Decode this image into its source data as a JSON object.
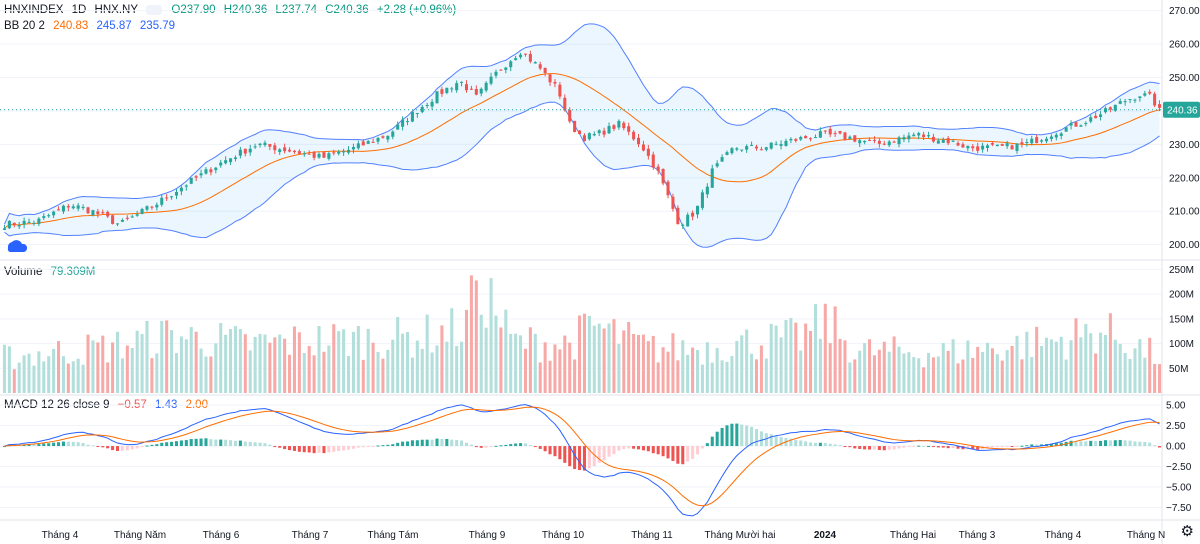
{
  "header": {
    "symbol": "HNXINDEX",
    "interval": "1D",
    "exchange": "HNX.NY",
    "open": "O237.90",
    "high": "H240.36",
    "low": "L237.74",
    "close": "C240.36",
    "change": "+2.28 (+0.96%)"
  },
  "bb": {
    "label": "BB 20 2",
    "basis": "240.83",
    "upper": "245.87",
    "lower": "235.79"
  },
  "volume": {
    "label": "Volume",
    "value": "79.309M"
  },
  "macd": {
    "label": "MACD 12 26 close 9",
    "hist": "−0.57",
    "macd": "1.43",
    "signal": "2.00"
  },
  "last_price": "240.36",
  "colors": {
    "up": "#26a69a",
    "down": "#ef5350",
    "bb_basis": "#ff6d00",
    "bb_band": "#2962ff",
    "macd_line": "#2962ff",
    "signal_line": "#ff6d00"
  },
  "chart_data": {
    "type": "candlestick",
    "price_axis": {
      "ticks": [
        "270.00",
        "260.00",
        "250.00",
        "240.00",
        "230.00",
        "220.00",
        "210.00",
        "200.00"
      ],
      "values": [
        270,
        260,
        250,
        240,
        230,
        220,
        210,
        200
      ],
      "ylim": [
        196,
        272
      ]
    },
    "volume_axis": {
      "ticks": [
        "250M",
        "200M",
        "150M",
        "100M",
        "50M"
      ],
      "values": [
        250,
        200,
        150,
        100,
        50
      ]
    },
    "macd_axis": {
      "ticks": [
        "5.00",
        "2.50",
        "0.00",
        "−2.50",
        "−5.00",
        "−7.50"
      ],
      "values": [
        5,
        2.5,
        0,
        -2.5,
        -5,
        -7.5
      ]
    },
    "time_axis": [
      "Tháng 4",
      "Tháng Năm",
      "Tháng 6",
      "Tháng 7",
      "Tháng Tám",
      "Tháng 9",
      "Tháng 10",
      "Tháng 11",
      "Tháng Mười hai",
      "2024",
      "Tháng Hai",
      "Tháng 3",
      "Tháng 4",
      "Tháng N"
    ],
    "anchors": [
      [
        0,
        206
      ],
      [
        12,
        207
      ],
      [
        24,
        212
      ],
      [
        32,
        210
      ],
      [
        42,
        206
      ],
      [
        55,
        212
      ],
      [
        66,
        218
      ],
      [
        80,
        225
      ],
      [
        92,
        230
      ],
      [
        105,
        228
      ],
      [
        116,
        226
      ],
      [
        128,
        229
      ],
      [
        140,
        233
      ],
      [
        150,
        240
      ],
      [
        158,
        245
      ],
      [
        166,
        249
      ],
      [
        172,
        244
      ],
      [
        180,
        252
      ],
      [
        188,
        258
      ],
      [
        195,
        253
      ],
      [
        202,
        246
      ],
      [
        206,
        236
      ],
      [
        211,
        232
      ],
      [
        216,
        233
      ],
      [
        224,
        236
      ],
      [
        232,
        230
      ],
      [
        238,
        222
      ],
      [
        246,
        206
      ],
      [
        252,
        210
      ],
      [
        258,
        222
      ],
      [
        266,
        229
      ],
      [
        276,
        229
      ],
      [
        286,
        231
      ],
      [
        298,
        233
      ],
      [
        308,
        232
      ],
      [
        318,
        230
      ],
      [
        332,
        233
      ],
      [
        344,
        231
      ],
      [
        352,
        229
      ],
      [
        362,
        229
      ],
      [
        372,
        230
      ],
      [
        384,
        234
      ],
      [
        394,
        237
      ],
      [
        402,
        240
      ],
      [
        408,
        243
      ],
      [
        414,
        245
      ],
      [
        418,
        244
      ],
      [
        421,
        240
      ]
    ],
    "volume_anchors": [
      [
        0,
        80
      ],
      [
        40,
        105
      ],
      [
        60,
        130
      ],
      [
        90,
        110
      ],
      [
        120,
        120
      ],
      [
        150,
        125
      ],
      [
        170,
        150
      ],
      [
        175,
        235
      ],
      [
        185,
        115
      ],
      [
        205,
        110
      ],
      [
        215,
        150
      ],
      [
        235,
        100
      ],
      [
        255,
        100
      ],
      [
        265,
        110
      ],
      [
        290,
        125
      ],
      [
        300,
        160
      ],
      [
        310,
        95
      ],
      [
        340,
        90
      ],
      [
        360,
        100
      ],
      [
        385,
        120
      ],
      [
        400,
        140
      ],
      [
        421,
        80
      ]
    ],
    "time_range_days": 421
  }
}
